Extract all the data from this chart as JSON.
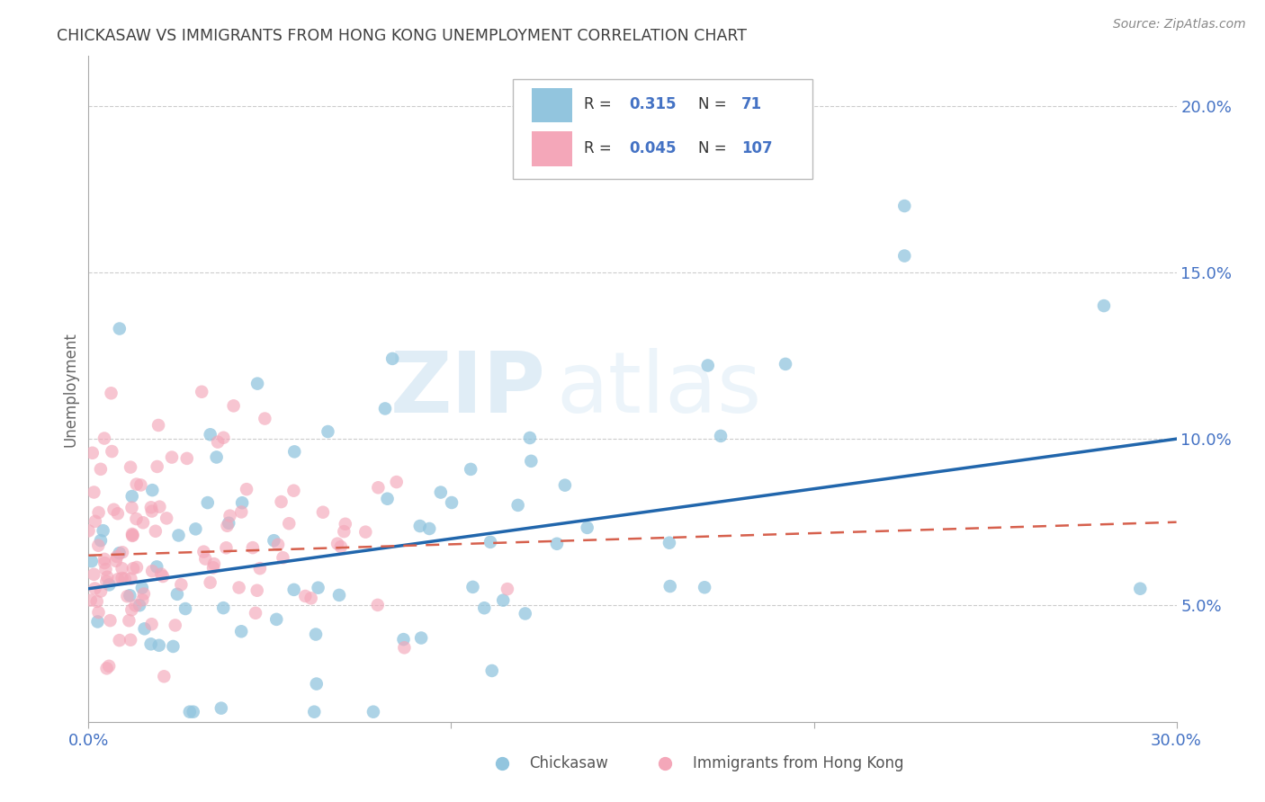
{
  "title": "CHICKASAW VS IMMIGRANTS FROM HONG KONG UNEMPLOYMENT CORRELATION CHART",
  "source": "Source: ZipAtlas.com",
  "ylabel": "Unemployment",
  "yticks": [
    0.05,
    0.1,
    0.15,
    0.2
  ],
  "ytick_labels": [
    "5.0%",
    "10.0%",
    "15.0%",
    "20.0%"
  ],
  "xlim": [
    0.0,
    0.3
  ],
  "ylim": [
    0.015,
    0.215
  ],
  "color_blue": "#92c5de",
  "color_pink": "#f4a7b9",
  "line_color_blue": "#2166ac",
  "line_color_pink": "#d6604d",
  "watermark_zip": "ZIP",
  "watermark_atlas": "atlas",
  "background_color": "#ffffff",
  "grid_color": "#cccccc",
  "title_color": "#404040",
  "axis_label_color": "#4472c4",
  "blue_seed": 12345,
  "pink_seed": 67890
}
